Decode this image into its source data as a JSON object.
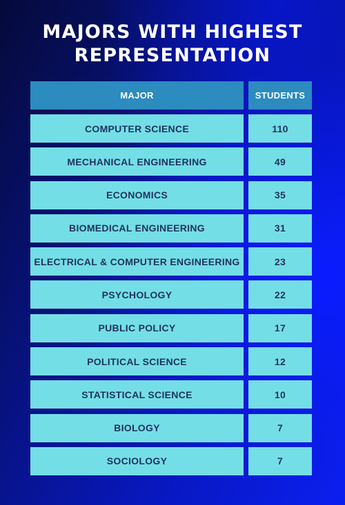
{
  "chart_data": {
    "type": "table",
    "title": "MAJORS WITH HIGHEST REPRESENTATION",
    "columns": [
      "MAJOR",
      "STUDENTS"
    ],
    "rows": [
      {
        "major": "COMPUTER SCIENCE",
        "students": 110
      },
      {
        "major": "MECHANICAL ENGINEERING",
        "students": 49
      },
      {
        "major": "ECONOMICS",
        "students": 35
      },
      {
        "major": "BIOMEDICAL ENGINEERING",
        "students": 31
      },
      {
        "major": "ELECTRICAL & COMPUTER ENGINEERING",
        "students": 23
      },
      {
        "major": "PSYCHOLOGY",
        "students": 22
      },
      {
        "major": "PUBLIC POLICY",
        "students": 17
      },
      {
        "major": "POLITICAL SCIENCE",
        "students": 12
      },
      {
        "major": "STATISTICAL SCIENCE",
        "students": 10
      },
      {
        "major": "BIOLOGY",
        "students": 7
      },
      {
        "major": "SOCIOLOGY",
        "students": 7
      }
    ]
  },
  "colors": {
    "header_fill": "#2c8bbf",
    "row_fill": "#74dee6",
    "row_text": "#20335e",
    "title_text": "#ffffff",
    "background_dark": "#050a3a",
    "background_bright": "#0b1ff0"
  }
}
